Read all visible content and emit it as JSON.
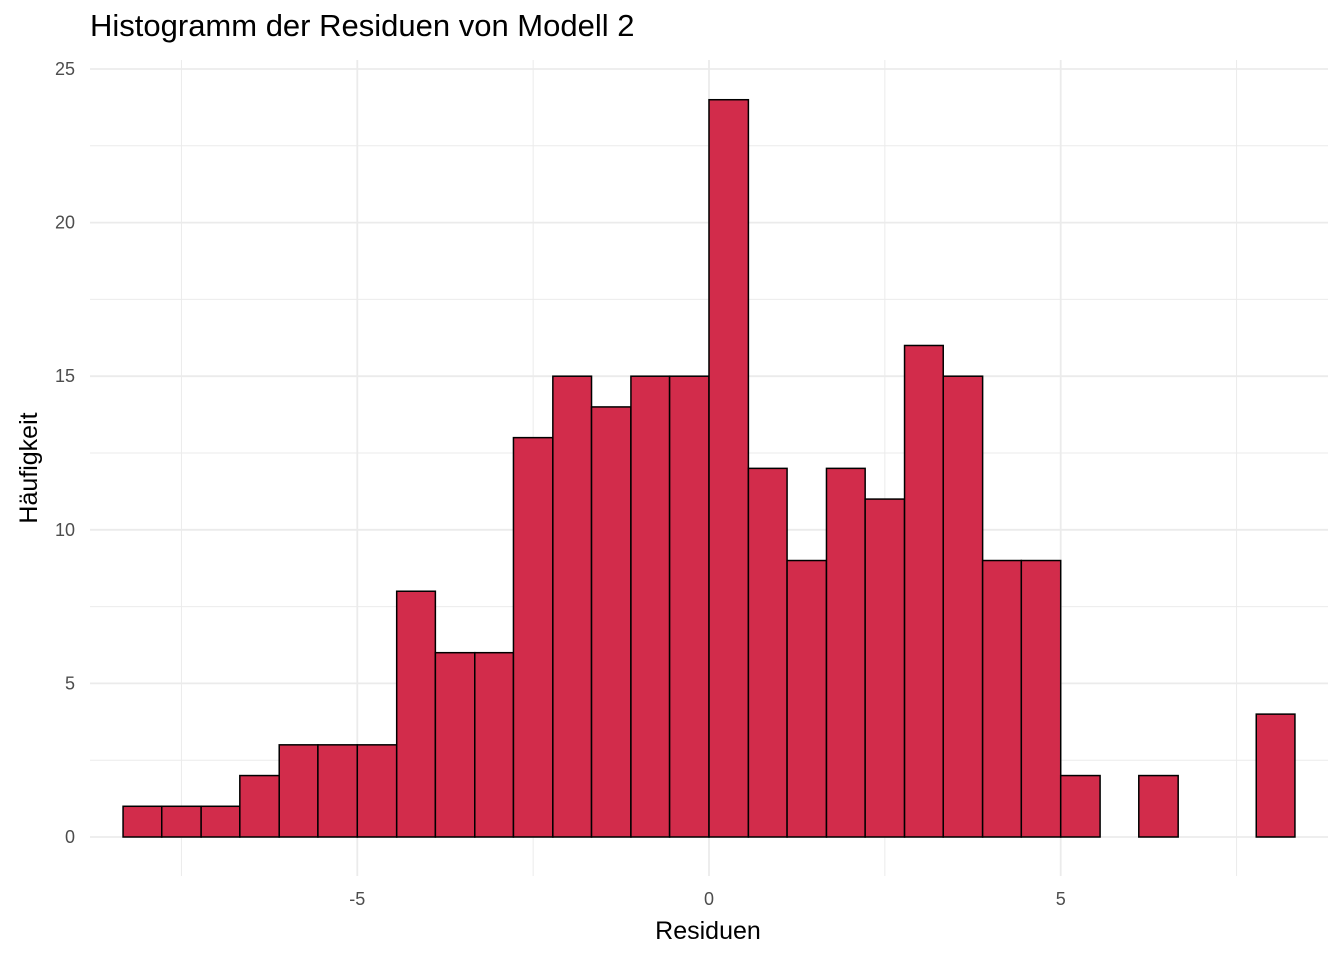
{
  "chart_data": {
    "type": "bar",
    "title": "Histogramm der Residuen von Modell 2",
    "xlabel": "Residuen",
    "ylabel": "Häufigkeit",
    "bin_width": 0.5556,
    "bins": [
      {
        "start": -8.33,
        "end": -7.78,
        "count": 1
      },
      {
        "start": -7.78,
        "end": -7.22,
        "count": 1
      },
      {
        "start": -7.22,
        "end": -6.67,
        "count": 1
      },
      {
        "start": -6.67,
        "end": -6.11,
        "count": 2
      },
      {
        "start": -6.11,
        "end": -5.56,
        "count": 3
      },
      {
        "start": -5.56,
        "end": -5.0,
        "count": 3
      },
      {
        "start": -5.0,
        "end": -4.44,
        "count": 3
      },
      {
        "start": -4.44,
        "end": -3.89,
        "count": 8
      },
      {
        "start": -3.89,
        "end": -3.33,
        "count": 6
      },
      {
        "start": -3.33,
        "end": -2.78,
        "count": 6
      },
      {
        "start": -2.78,
        "end": -2.22,
        "count": 13
      },
      {
        "start": -2.22,
        "end": -1.67,
        "count": 15
      },
      {
        "start": -1.67,
        "end": -1.11,
        "count": 14
      },
      {
        "start": -1.11,
        "end": -0.56,
        "count": 15
      },
      {
        "start": -0.56,
        "end": 0.0,
        "count": 15
      },
      {
        "start": 0.0,
        "end": 0.56,
        "count": 24
      },
      {
        "start": 0.56,
        "end": 1.11,
        "count": 12
      },
      {
        "start": 1.11,
        "end": 1.67,
        "count": 9
      },
      {
        "start": 1.67,
        "end": 2.22,
        "count": 12
      },
      {
        "start": 2.22,
        "end": 2.78,
        "count": 11
      },
      {
        "start": 2.78,
        "end": 3.33,
        "count": 16
      },
      {
        "start": 3.33,
        "end": 3.89,
        "count": 15
      },
      {
        "start": 3.89,
        "end": 4.44,
        "count": 9
      },
      {
        "start": 4.44,
        "end": 5.0,
        "count": 9
      },
      {
        "start": 5.0,
        "end": 5.56,
        "count": 2
      },
      {
        "start": 5.56,
        "end": 6.11,
        "count": 0
      },
      {
        "start": 6.11,
        "end": 6.67,
        "count": 2
      },
      {
        "start": 6.67,
        "end": 7.22,
        "count": 0
      },
      {
        "start": 7.22,
        "end": 7.78,
        "count": 0
      },
      {
        "start": 7.78,
        "end": 8.33,
        "count": 4
      }
    ],
    "xlim": [
      -8.8,
      8.8
    ],
    "ylim": [
      0,
      25
    ],
    "x_ticks": [
      -5,
      0,
      5
    ],
    "x_tick_labels": [
      "-5",
      "0",
      "5"
    ],
    "y_ticks": [
      0,
      5,
      10,
      15,
      20,
      25
    ],
    "y_tick_labels": [
      "0",
      "5",
      "10",
      "15",
      "20",
      "25"
    ],
    "grid": true,
    "bar_fill": "#D22C4B",
    "bar_stroke": "#000000",
    "grid_color": "#EBEBEB"
  }
}
